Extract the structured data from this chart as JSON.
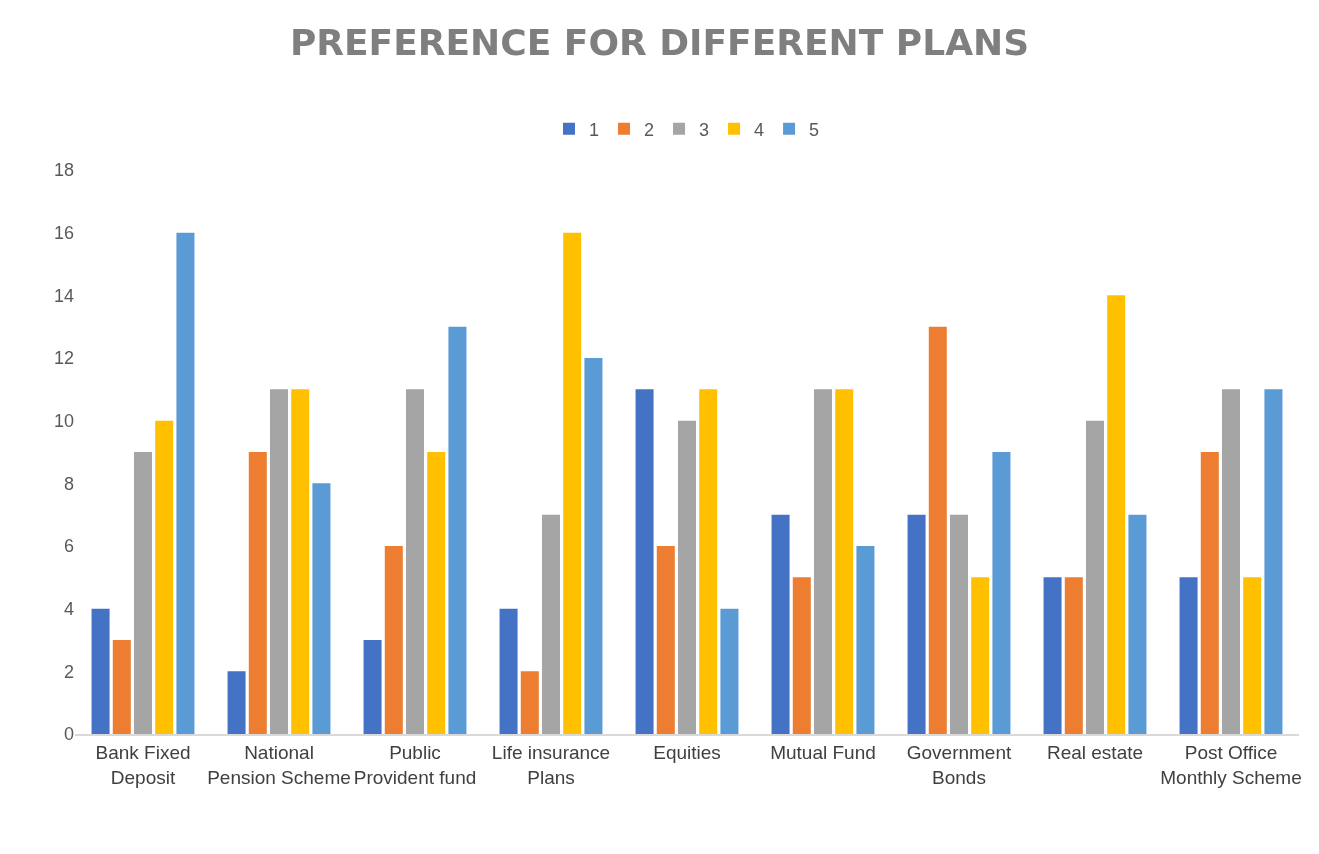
{
  "chart_data": {
    "type": "bar",
    "title": "PREFERENCE FOR DIFFERENT PLANS",
    "categories": [
      "Bank Fixed Deposit",
      "National Pension Scheme",
      "Public Provident fund",
      "Life insurance Plans",
      "Equities",
      "Mutual Fund",
      "Government Bonds",
      "Real estate",
      "Post Office Monthly Scheme"
    ],
    "series": [
      {
        "name": "1",
        "color": "#4472c4",
        "values": [
          4,
          2,
          3,
          4,
          11,
          7,
          7,
          5,
          5
        ]
      },
      {
        "name": "2",
        "color": "#ed7d31",
        "values": [
          3,
          9,
          6,
          2,
          6,
          5,
          13,
          5,
          9
        ]
      },
      {
        "name": "3",
        "color": "#a5a5a5",
        "values": [
          9,
          11,
          11,
          7,
          10,
          11,
          7,
          10,
          11
        ]
      },
      {
        "name": "4",
        "color": "#ffc000",
        "values": [
          10,
          11,
          9,
          16,
          11,
          11,
          5,
          14,
          5
        ]
      },
      {
        "name": "5",
        "color": "#5b9bd5",
        "values": [
          16,
          8,
          13,
          12,
          4,
          6,
          9,
          7,
          11
        ]
      }
    ],
    "ylim": [
      0,
      18
    ],
    "yticks": [
      0,
      2,
      4,
      6,
      8,
      10,
      12,
      14,
      16,
      18
    ],
    "grid": false,
    "legend": "top"
  }
}
